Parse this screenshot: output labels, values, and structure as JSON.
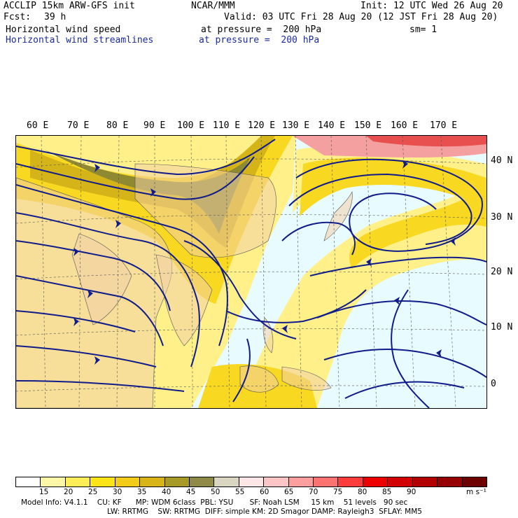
{
  "header": {
    "model": "ACCLIP 15km ARW-GFS init",
    "center": "NCAR/MMM",
    "init": "Init: 12 UTC Wed 26 Aug 20",
    "fcst_label": "Fcst:",
    "fcst_value": "39 h",
    "valid": "Valid: 03 UTC Fri 28 Aug 20 (12 JST Fri 28 Aug 20)",
    "field1_name": "Horizontal wind speed",
    "field1_level": "at pressure =  200 hPa",
    "field1_sm": "sm= 1",
    "field2_name": "Horizontal wind streamlines",
    "field2_level": "at pressure =  200 hPa"
  },
  "map": {
    "lon_labels": [
      "60 E",
      "70 E",
      "80 E",
      "90 E",
      "100 E",
      "110 E",
      "120 E",
      "130 E",
      "140 E",
      "150 E",
      "160 E",
      "170 E"
    ],
    "lat_labels": [
      "40 N",
      "30 N",
      "20 N",
      "10 N",
      "0"
    ],
    "colors": {
      "ocean_bg": "#e8fbff",
      "land": "#f0cfa6",
      "streamline": "#101c8a",
      "yellow_light": "#ffef6a",
      "yellow": "#f8d820",
      "gold": "#d4b418",
      "olive": "#8f8a32",
      "grey": "#b8b59a",
      "red_light": "#f4a0a0",
      "red": "#e85050"
    }
  },
  "colorbar": {
    "tick_labels": [
      "15",
      "20",
      "25",
      "30",
      "35",
      "40",
      "45",
      "50",
      "55",
      "60",
      "65",
      "70",
      "75",
      "80",
      "85",
      "90"
    ],
    "unit": "m s⁻¹",
    "swatches": [
      "#ffffff",
      "#fff6a8",
      "#ffee58",
      "#ffe418",
      "#f2cc18",
      "#d8b418",
      "#a89a28",
      "#8f8a48",
      "#d8d6c0",
      "#ffe6e6",
      "#ffc4c4",
      "#ff9e9e",
      "#ff7272",
      "#ff3c3c",
      "#ee0000",
      "#d20000",
      "#b40000",
      "#960000",
      "#6e0000"
    ]
  },
  "footer": {
    "line1": "Model Info: V4.1.1    CU: KF      MP: WDM 6class  PBL: YSU       SF: Noah LSM     15 km    51 levels   90 sec",
    "line2": "LW: RRTMG    SW: RRTMG  DIFF: simple KM: 2D Smagor DAMP: Rayleigh3  SFLAY: MM5"
  }
}
